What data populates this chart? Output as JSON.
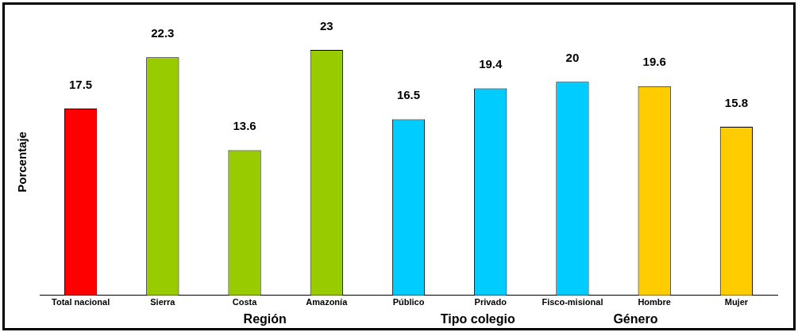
{
  "chart_data": {
    "type": "bar",
    "ylabel": "Porcentaje",
    "categories": [
      "Total nacional",
      "Sierra",
      "Costa",
      "Amazonía",
      "Público",
      "Privado",
      "Fisco-misional",
      "Hombre",
      "Mujer"
    ],
    "values": [
      17.5,
      22.3,
      13.6,
      23,
      16.5,
      19.4,
      20,
      19.6,
      15.8
    ],
    "colors": [
      "#ff0000",
      "#99cc00",
      "#99cc00",
      "#99cc00",
      "#00ccff",
      "#00ccff",
      "#00ccff",
      "#ffcc00",
      "#ffcc00"
    ],
    "data_labels": true,
    "grid": false,
    "legend": false,
    "annotations": [
      "Región",
      "Tipo colegio",
      "Género"
    ]
  }
}
